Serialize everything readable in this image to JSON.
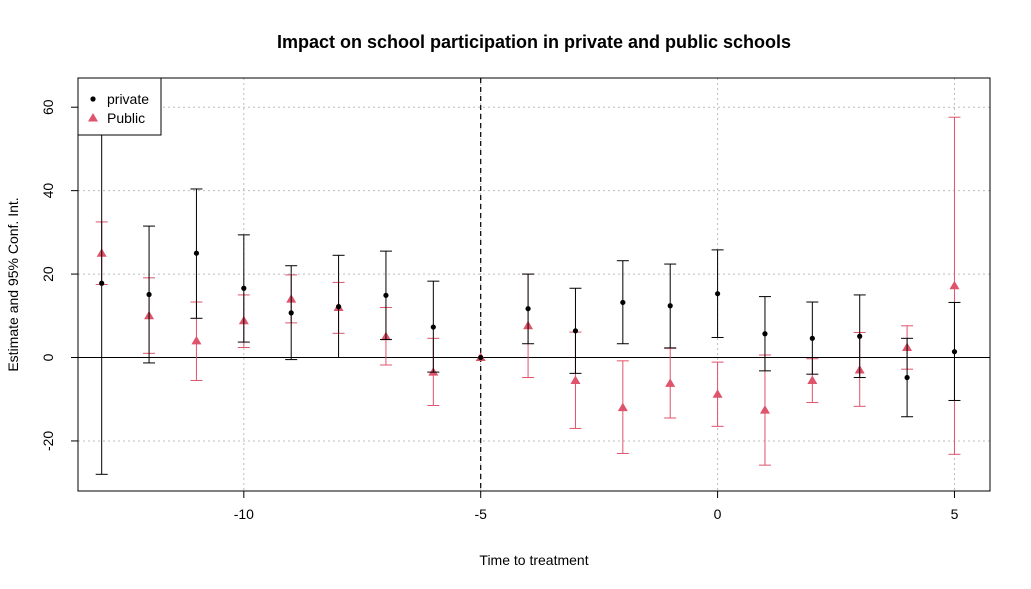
{
  "chart_data": {
    "type": "scatter",
    "title": "Impact  on school participation in private and public schools",
    "xlabel": "Time to treatment",
    "ylabel": "Estimate and 95% Conf. Int.",
    "xlim": [
      -13.5,
      5.75
    ],
    "ylim": [
      -32,
      67
    ],
    "x_ticks": [
      -10,
      -5,
      0,
      5
    ],
    "y_ticks": [
      -20,
      0,
      20,
      40,
      60
    ],
    "grid": true,
    "reference_line_y": 0,
    "reference_line_x": -5,
    "legend_position": "top-left",
    "series": [
      {
        "name": "private",
        "color": "#000000",
        "marker": "circle",
        "x": [
          -13,
          -12,
          -11,
          -10,
          -9,
          -8,
          -7,
          -6,
          -5,
          -4,
          -3,
          -2,
          -1,
          0,
          1,
          2,
          3,
          4,
          5
        ],
        "y": [
          17.8,
          15.1,
          25.0,
          16.6,
          10.7,
          12.2,
          14.9,
          7.3,
          0,
          11.7,
          6.4,
          13.2,
          12.4,
          15.3,
          5.7,
          4.6,
          5.1,
          -4.8,
          1.4
        ],
        "lower": [
          -28.0,
          -1.3,
          9.4,
          3.7,
          -0.5,
          0.0,
          4.3,
          -3.5,
          0,
          3.3,
          -3.8,
          3.3,
          2.3,
          4.8,
          -3.2,
          -4.0,
          -4.8,
          -14.2,
          -10.3
        ],
        "upper": [
          63.0,
          31.5,
          40.4,
          29.4,
          22.0,
          24.5,
          25.5,
          18.3,
          0,
          20.0,
          16.6,
          23.2,
          22.4,
          25.8,
          14.6,
          13.3,
          15.0,
          4.6,
          13.2
        ]
      },
      {
        "name": "Public",
        "color": "#DF536B",
        "marker": "triangle",
        "x": [
          -13,
          -12,
          -11,
          -10,
          -9,
          -8,
          -7,
          -6,
          -5,
          -4,
          -3,
          -2,
          -1,
          0,
          1,
          2,
          3,
          4,
          5
        ],
        "y": [
          25.0,
          10.0,
          4.0,
          8.8,
          14.0,
          12.0,
          5.0,
          -3.5,
          0,
          7.6,
          -5.5,
          -12.0,
          -6.2,
          -8.8,
          -12.6,
          -5.5,
          -3.0,
          2.4,
          17.2
        ],
        "lower": [
          17.5,
          1.0,
          -5.5,
          2.4,
          8.3,
          5.8,
          -1.8,
          -11.5,
          0,
          -4.8,
          -17.0,
          -23.0,
          -14.5,
          -16.5,
          -25.8,
          -10.8,
          -11.7,
          -2.8,
          -23.2
        ],
        "upper": [
          32.5,
          19.1,
          13.3,
          15.0,
          19.8,
          18.0,
          12.0,
          4.6,
          0,
          20.0,
          6.1,
          -0.8,
          2.2,
          -1.1,
          0.6,
          -0.3,
          6.0,
          7.6,
          57.6
        ]
      }
    ]
  }
}
